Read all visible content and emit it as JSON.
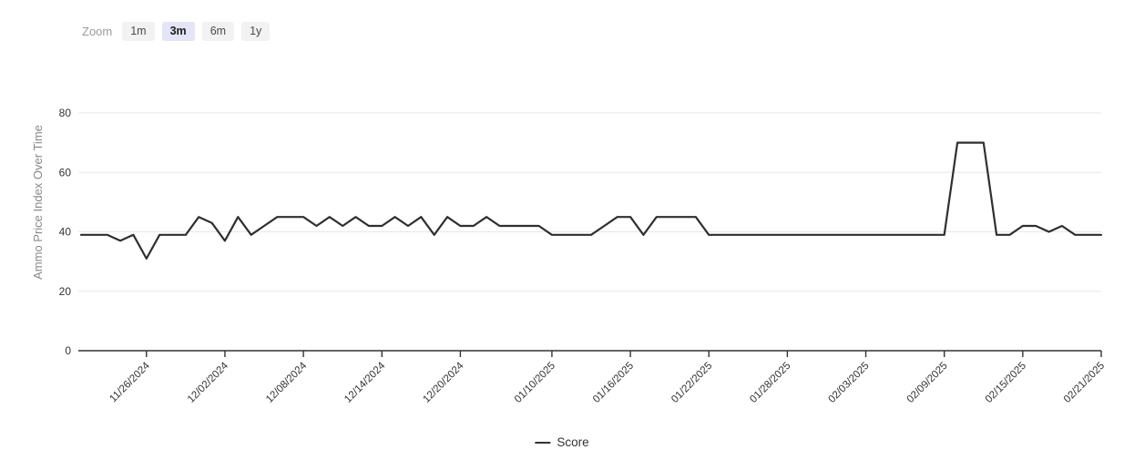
{
  "toolbar": {
    "zoom_label": "Zoom",
    "selected": "3m",
    "buttons": [
      {
        "label": "1m"
      },
      {
        "label": "3m"
      },
      {
        "label": "6m"
      },
      {
        "label": "1y"
      }
    ]
  },
  "chart_data": {
    "type": "line",
    "title": "",
    "ylabel": "Ammo Price Index Over Time",
    "xlabel": "",
    "yticks": [
      0,
      20,
      40,
      60,
      80
    ],
    "ylim": [
      0,
      88
    ],
    "grid": "horizontal",
    "legend_position": "bottom-center",
    "xtick_labels": [
      "11/26/2024",
      "12/02/2024",
      "12/08/2024",
      "12/14/2024",
      "12/20/2024",
      "01/10/2025",
      "01/16/2025",
      "01/22/2025",
      "01/28/2025",
      "02/03/2025",
      "02/09/2025",
      "02/15/2025",
      "02/21/2025"
    ],
    "xtick_indices": [
      5,
      11,
      17,
      23,
      29,
      36,
      42,
      48,
      54,
      60,
      66,
      72,
      78
    ],
    "x": [
      "11/21/2024",
      "11/22/2024",
      "11/23/2024",
      "11/24/2024",
      "11/25/2024",
      "11/26/2024",
      "11/27/2024",
      "11/28/2024",
      "11/29/2024",
      "11/30/2024",
      "12/01/2024",
      "12/02/2024",
      "12/03/2024",
      "12/04/2024",
      "12/05/2024",
      "12/06/2024",
      "12/07/2024",
      "12/08/2024",
      "12/09/2024",
      "12/10/2024",
      "12/11/2024",
      "12/12/2024",
      "12/13/2024",
      "12/14/2024",
      "12/15/2024",
      "12/16/2024",
      "12/17/2024",
      "12/18/2024",
      "12/19/2024",
      "12/20/2024",
      "12/21/2024",
      "12/22/2024",
      "12/23/2024",
      "01/07/2025",
      "01/08/2025",
      "01/09/2025",
      "01/10/2025",
      "01/11/2025",
      "01/12/2025",
      "01/13/2025",
      "01/14/2025",
      "01/15/2025",
      "01/16/2025",
      "01/17/2025",
      "01/18/2025",
      "01/19/2025",
      "01/20/2025",
      "01/21/2025",
      "01/22/2025",
      "01/23/2025",
      "01/24/2025",
      "01/25/2025",
      "01/26/2025",
      "01/27/2025",
      "01/28/2025",
      "01/29/2025",
      "01/30/2025",
      "01/31/2025",
      "02/01/2025",
      "02/02/2025",
      "02/03/2025",
      "02/04/2025",
      "02/05/2025",
      "02/06/2025",
      "02/07/2025",
      "02/08/2025",
      "02/09/2025",
      "02/10/2025",
      "02/11/2025",
      "02/12/2025",
      "02/13/2025",
      "02/14/2025",
      "02/15/2025",
      "02/16/2025",
      "02/17/2025",
      "02/18/2025",
      "02/19/2025",
      "02/20/2025",
      "02/21/2025"
    ],
    "series": [
      {
        "name": "Score",
        "values": [
          39,
          39,
          39,
          37,
          39,
          31,
          39,
          39,
          39,
          45,
          43,
          37,
          45,
          39,
          42,
          45,
          45,
          45,
          42,
          45,
          42,
          45,
          42,
          42,
          45,
          42,
          45,
          39,
          45,
          42,
          42,
          45,
          42,
          42,
          42,
          42,
          39,
          39,
          39,
          39,
          42,
          45,
          45,
          39,
          45,
          45,
          45,
          45,
          39,
          39,
          39,
          39,
          39,
          39,
          39,
          39,
          39,
          39,
          39,
          39,
          39,
          39,
          39,
          39,
          39,
          39,
          39,
          70,
          70,
          70,
          39,
          39,
          42,
          42,
          40,
          42,
          39,
          39,
          39
        ]
      }
    ]
  },
  "legend": {
    "score_label": "Score"
  },
  "colors": {
    "line": "#2f2f2f",
    "grid": "#e7e7e7",
    "axis": "#333333",
    "tick_label": "#333333",
    "y_title": "#888888",
    "selected_zoom_bg": "#e4e4f6",
    "button_bg": "#f2f2f2"
  }
}
